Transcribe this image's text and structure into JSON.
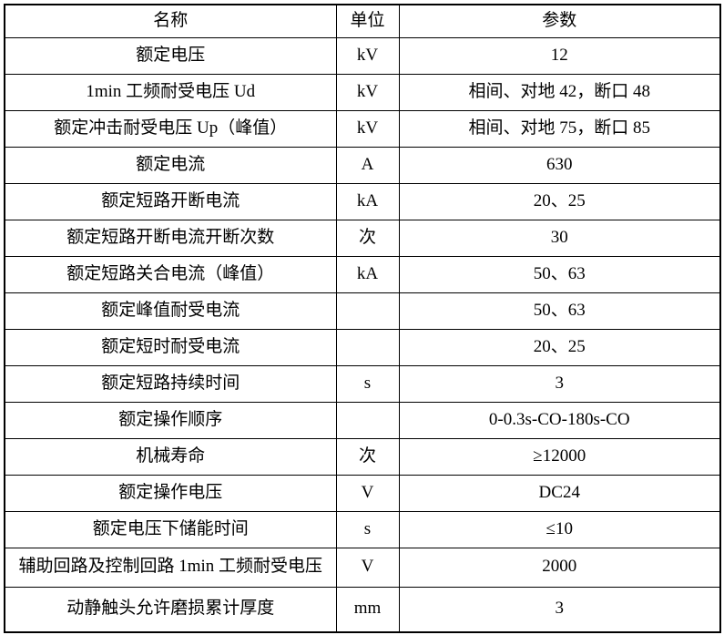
{
  "table": {
    "headers": [
      "名称",
      "单位",
      "参数"
    ],
    "rows": [
      {
        "name": "额定电压",
        "unit": "kV",
        "value": "12"
      },
      {
        "name": "1min 工频耐受电压 Ud",
        "unit": "kV",
        "value": "相间、对地 42，断口 48"
      },
      {
        "name": "额定冲击耐受电压 Up（峰值）",
        "unit": "kV",
        "value": "相间、对地 75，断口 85"
      },
      {
        "name": "额定电流",
        "unit": "A",
        "value": "630"
      },
      {
        "name": "额定短路开断电流",
        "unit": "kA",
        "value": "20、25"
      },
      {
        "name": "额定短路开断电流开断次数",
        "unit": "次",
        "value": "30"
      },
      {
        "name": "额定短路关合电流（峰值）",
        "unit": "kA",
        "value": "50、63"
      },
      {
        "name": "额定峰值耐受电流",
        "unit": "",
        "value": "50、63"
      },
      {
        "name": "额定短时耐受电流",
        "unit": "",
        "value": "20、25"
      },
      {
        "name": "额定短路持续时间",
        "unit": "s",
        "value": "3"
      },
      {
        "name": "额定操作顺序",
        "unit": "",
        "value": "0-0.3s-CO-180s-CO"
      },
      {
        "name": "机械寿命",
        "unit": "次",
        "value": "≥12000"
      },
      {
        "name": "额定操作电压",
        "unit": "V",
        "value": "DC24"
      },
      {
        "name": "额定电压下储能时间",
        "unit": "s",
        "value": "≤10"
      },
      {
        "name": "辅助回路及控制回路 1min 工频耐受电压",
        "unit": "V",
        "value": "2000"
      },
      {
        "name": "动静触头允许磨损累计厚度",
        "unit": "mm",
        "value": "3"
      }
    ]
  }
}
